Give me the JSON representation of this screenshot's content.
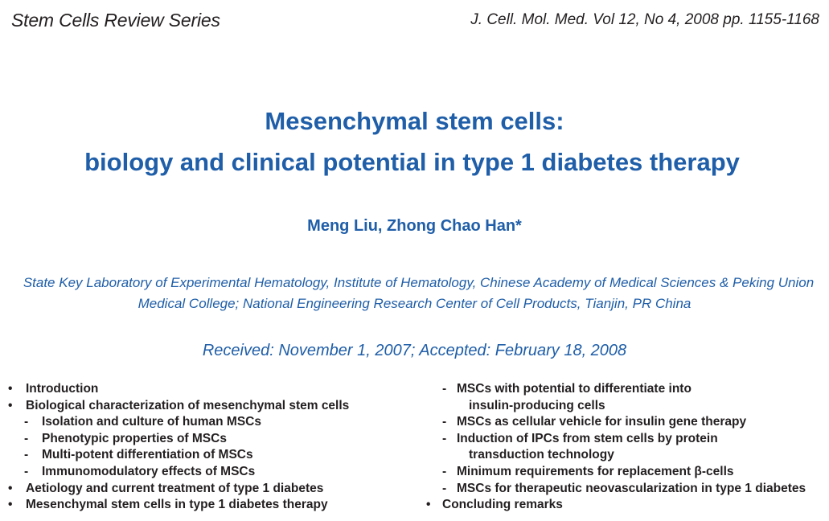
{
  "header": {
    "series": "Stem Cells Review Series",
    "citation": "J. Cell. Mol. Med. Vol 12, No 4, 2008 pp. 1155-1168"
  },
  "title": {
    "line1": "Mesenchymal stem cells:",
    "line2": "biology and clinical potential in type 1 diabetes therapy"
  },
  "authors": "Meng Liu, Zhong Chao Han*",
  "affiliation": {
    "line1": "State Key Laboratory of Experimental Hematology, Institute of Hematology, Chinese Academy of Medical Sciences & Peking Union",
    "line2": "Medical College; National Engineering Research Center of Cell Products, Tianjin, PR China"
  },
  "dates": "Received:  November 1, 2007; Accepted: February 18, 2008",
  "toc_left": [
    {
      "marker": "•",
      "text": "Introduction",
      "level": 0
    },
    {
      "marker": "•",
      "text": "Biological characterization of mesenchymal stem cells",
      "level": 0
    },
    {
      "marker": "-",
      "text": "Isolation and culture of human MSCs",
      "level": 1
    },
    {
      "marker": "-",
      "text": "Phenotypic properties of MSCs",
      "level": 1
    },
    {
      "marker": "-",
      "text": "Multi-potent differentiation of MSCs",
      "level": 1
    },
    {
      "marker": "-",
      "text": "Immunomodulatory effects of MSCs",
      "level": 1
    },
    {
      "marker": "•",
      "text": "Aetiology and current treatment of type 1 diabetes",
      "level": 0
    },
    {
      "marker": "•",
      "text": "Mesenchymal stem cells in type 1 diabetes therapy",
      "level": 0
    }
  ],
  "toc_right": [
    {
      "marker": "-",
      "text": "MSCs with potential to differentiate into",
      "level": 1
    },
    {
      "marker": "",
      "text": "insulin-producing cells",
      "level": 2
    },
    {
      "marker": "-",
      "text": "MSCs as cellular vehicle for insulin gene therapy",
      "level": 1
    },
    {
      "marker": "-",
      "text": "Induction of IPCs from stem cells by protein",
      "level": 1
    },
    {
      "marker": "",
      "text": "transduction technology",
      "level": 2
    },
    {
      "marker": "-",
      "text": "Minimum requirements for replacement β-cells",
      "level": 1
    },
    {
      "marker": "-",
      "text": "MSCs for therapeutic neovascularization in type 1 diabetes",
      "level": 1
    },
    {
      "marker": "•",
      "text": "Concluding remarks",
      "level": 0
    }
  ],
  "colors": {
    "accent": "#1f5ea8",
    "text": "#231f20"
  }
}
